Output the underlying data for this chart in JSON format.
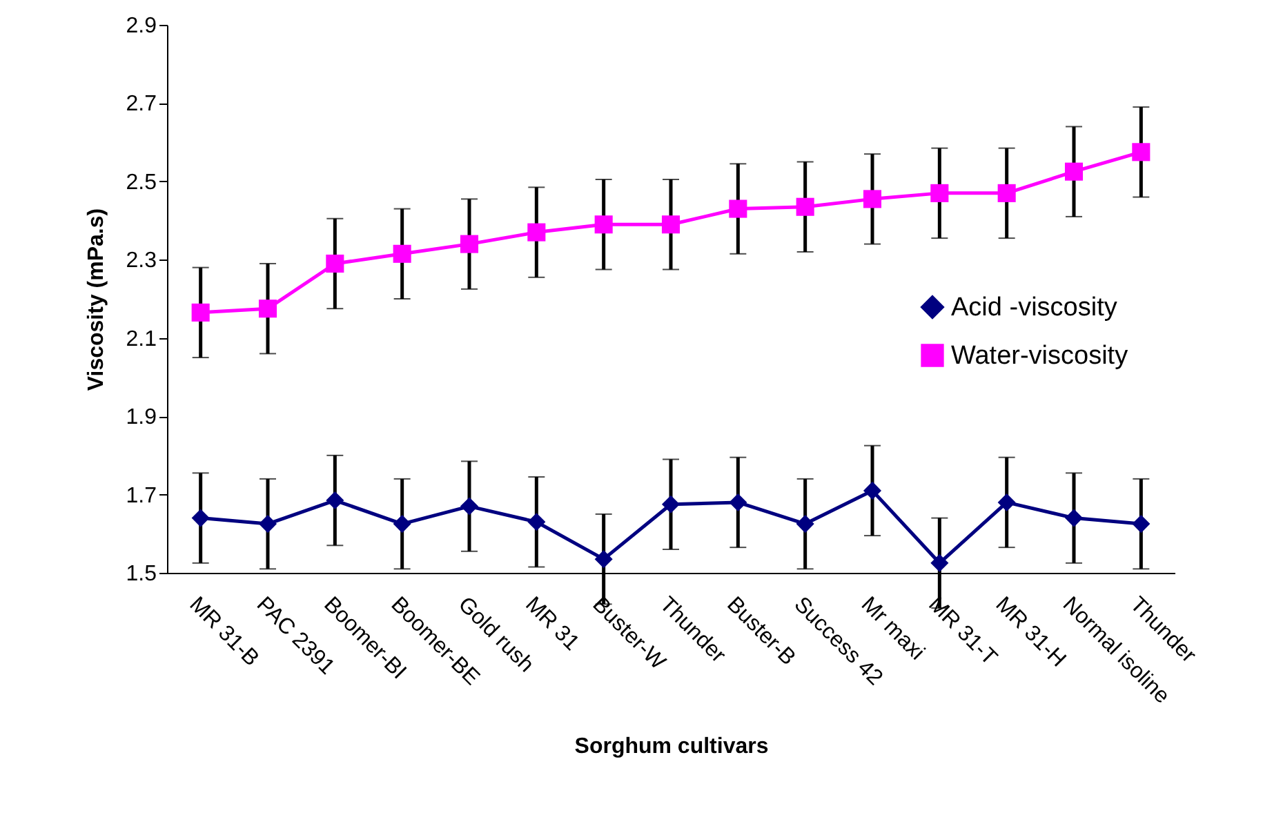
{
  "chart_data": {
    "type": "line",
    "xlabel": "Sorghum cultivars",
    "ylabel": "Viscosity (mPa.s)",
    "categories": [
      "MR 31-B",
      "PAC 2391",
      "Boomer-BI",
      "Boomer-BE",
      "Gold rush",
      "MR 31",
      "Buster-W",
      "Thunder",
      "Buster-B",
      "Success 42",
      "Mr maxi",
      "MR 31-T",
      "MR 31-H",
      "Normal isoline",
      "Thunder"
    ],
    "series": [
      {
        "name": "Acid -viscosity",
        "color": "#000080",
        "marker": "diamond",
        "values": [
          1.64,
          1.625,
          1.685,
          1.625,
          1.67,
          1.63,
          1.535,
          1.675,
          1.68,
          1.625,
          1.71,
          1.525,
          1.68,
          1.64,
          1.625
        ],
        "errors": [
          0.115,
          0.115,
          0.115,
          0.115,
          0.115,
          0.115,
          0.115,
          0.115,
          0.115,
          0.115,
          0.115,
          0.115,
          0.115,
          0.115,
          0.115
        ]
      },
      {
        "name": "Water-viscosity",
        "color": "#ff00ff",
        "marker": "square",
        "values": [
          2.165,
          2.175,
          2.29,
          2.315,
          2.34,
          2.37,
          2.39,
          2.39,
          2.43,
          2.435,
          2.455,
          2.47,
          2.47,
          2.525,
          2.575
        ],
        "errors": [
          0.115,
          0.115,
          0.115,
          0.115,
          0.115,
          0.115,
          0.115,
          0.115,
          0.115,
          0.115,
          0.115,
          0.115,
          0.115,
          0.115,
          0.115
        ]
      }
    ],
    "ylim": [
      1.5,
      2.9
    ],
    "yticks": [
      1.5,
      1.7,
      1.9,
      2.1,
      2.3,
      2.5,
      2.7,
      2.9
    ],
    "grid": false,
    "legend": "right",
    "line_style": "solid"
  }
}
